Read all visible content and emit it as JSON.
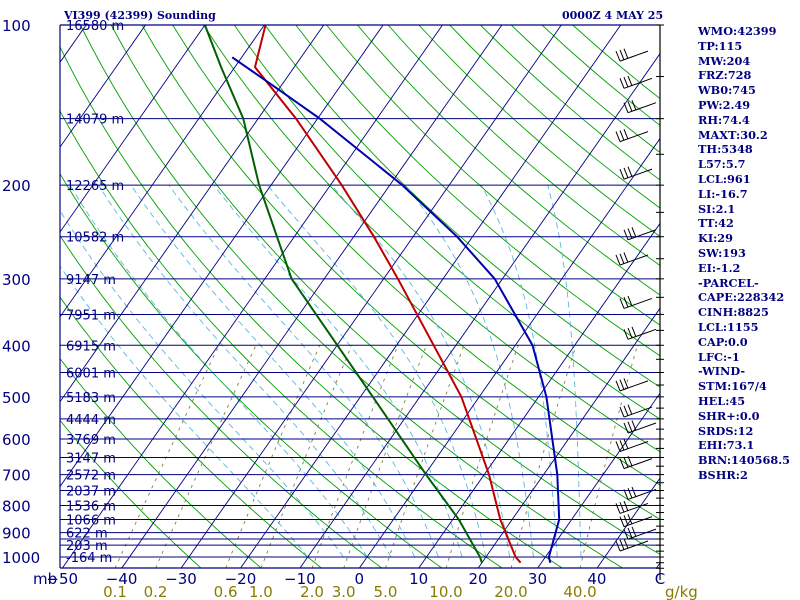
{
  "header": {
    "station_title": "VI399 (42399) Sounding",
    "time": "0000Z  4 MAY 25"
  },
  "axes": {
    "mb_label": "mb",
    "mixing_unit": "g/kg"
  },
  "chart_data": {
    "type": "skew-t",
    "pressure_ticks": [
      100,
      200,
      300,
      400,
      500,
      600,
      700,
      800,
      900,
      1000
    ],
    "isobars": [
      100,
      150,
      200,
      250,
      300,
      350,
      400,
      450,
      500,
      550,
      600,
      650,
      700,
      750,
      800,
      850,
      900,
      925,
      950,
      1000
    ],
    "height_labels": [
      {
        "p": 100,
        "label": "16580 m"
      },
      {
        "p": 150,
        "label": "14079 m"
      },
      {
        "p": 200,
        "label": "12265 m"
      },
      {
        "p": 250,
        "label": "10582 m"
      },
      {
        "p": 300,
        "label": "9147 m"
      },
      {
        "p": 350,
        "label": "7951 m"
      },
      {
        "p": 400,
        "label": "6915 m"
      },
      {
        "p": 450,
        "label": "6001 m"
      },
      {
        "p": 500,
        "label": "5183 m"
      },
      {
        "p": 550,
        "label": "4444 m"
      },
      {
        "p": 600,
        "label": "3769 m"
      },
      {
        "p": 650,
        "label": "3147 m"
      },
      {
        "p": 700,
        "label": "2572 m"
      },
      {
        "p": 750,
        "label": "2037 m"
      },
      {
        "p": 800,
        "label": "1536 m"
      },
      {
        "p": 850,
        "label": "1066 m"
      },
      {
        "p": 900,
        "label": "622 m"
      },
      {
        "p": 950,
        "label": "203 m"
      },
      {
        "p": 1000,
        "label": "-164 m"
      }
    ],
    "temp_ticks": [
      -50,
      -40,
      -30,
      -20,
      -10,
      0,
      10,
      20,
      30,
      40
    ],
    "temp_tick_labels": [
      "−50",
      "−40",
      "−30",
      "−20",
      "−10",
      "0",
      "10",
      "20",
      "30",
      "40"
    ],
    "mixing_ratio_ticks": [
      0.1,
      0.2,
      0.6,
      1.0,
      2.0,
      3.0,
      5.0,
      10.0,
      20.0,
      40.0
    ],
    "mixing_ratio_labels": [
      "0.1",
      "0.2",
      "0.6",
      "1.0",
      "2.0",
      "3.0",
      "5.0",
      "10.0",
      "20.0",
      "40.0"
    ],
    "x_range_at_1000mb": [
      -51.7,
      49.3
    ],
    "pressure_range": [
      100,
      1050
    ],
    "temperature_profile": [
      {
        "p": 1025,
        "t": 26.5
      },
      {
        "p": 1000,
        "t": 25
      },
      {
        "p": 850,
        "t": 18
      },
      {
        "p": 700,
        "t": 10.8
      },
      {
        "p": 500,
        "t": -3
      },
      {
        "p": 300,
        "t": -27.6
      },
      {
        "p": 250,
        "t": -36.6
      },
      {
        "p": 200,
        "t": -48.1
      },
      {
        "p": 150,
        "t": -63.6
      },
      {
        "p": 120,
        "t": -76.6
      },
      {
        "p": 100,
        "t": -79.8
      }
    ],
    "dewpoint_profile": [
      {
        "p": 1025,
        "t": 20
      },
      {
        "p": 1000,
        "t": 19
      },
      {
        "p": 850,
        "t": 11
      },
      {
        "p": 700,
        "t": 0.2
      },
      {
        "p": 500,
        "t": -17.9
      },
      {
        "p": 300,
        "t": -45.5
      },
      {
        "p": 200,
        "t": -62
      },
      {
        "p": 150,
        "t": -72.5
      },
      {
        "p": 120,
        "t": -82.3
      },
      {
        "p": 100,
        "t": -90
      }
    ],
    "parcel_profile": [
      {
        "p": 1025,
        "t": 31.5
      },
      {
        "p": 1000,
        "t": 30.6
      },
      {
        "p": 850,
        "t": 27.9
      },
      {
        "p": 700,
        "t": 22.3
      },
      {
        "p": 500,
        "t": 11.3
      },
      {
        "p": 400,
        "t": 2.9
      },
      {
        "p": 300,
        "t": -11.3
      },
      {
        "p": 250,
        "t": -22.6
      },
      {
        "p": 200,
        "t": -37.9
      },
      {
        "p": 150,
        "t": -59.6
      },
      {
        "p": 130,
        "t": -71.4
      },
      {
        "p": 115,
        "t": -81.6
      }
    ],
    "wind_barb_levels": [
      120,
      135,
      150,
      170,
      200,
      260,
      290,
      350,
      400,
      500,
      560,
      600,
      650,
      700,
      800,
      850,
      900,
      950,
      1000
    ],
    "colors": {
      "isobar": "#000080",
      "isotherm": "#000080",
      "dry_adiabat": "#00a000",
      "moist_adiabat": "#5bb7e0",
      "mixing_ratio": "#808040",
      "temperature": "#c00000",
      "dewpoint": "#006000",
      "parcel": "#0000b0",
      "wind_barb": "#000000"
    }
  },
  "indices": [
    "WMO:42399",
    "TP:115",
    "MW:204",
    "FRZ:728",
    "WB0:745",
    "PW:2.49",
    "RH:74.4",
    "MAXT:30.2",
    "TH:5348",
    "L57:5.7",
    "LCL:961",
    "LI:-16.7",
    "SI:2.1",
    "TT:42",
    "KI:29",
    "SW:193",
    "EI:-1.2",
    "-PARCEL-",
    "CAPE:228342",
    "CINH:8825",
    "LCL:1155",
    "CAP:0.0",
    "LFC:-1",
    "-WIND-",
    "STM:167/4",
    "HEL:45",
    "SHR+:0.0",
    "SRDS:12",
    "EHI:73.1",
    "BRN:140568.5",
    "BSHR:2"
  ]
}
